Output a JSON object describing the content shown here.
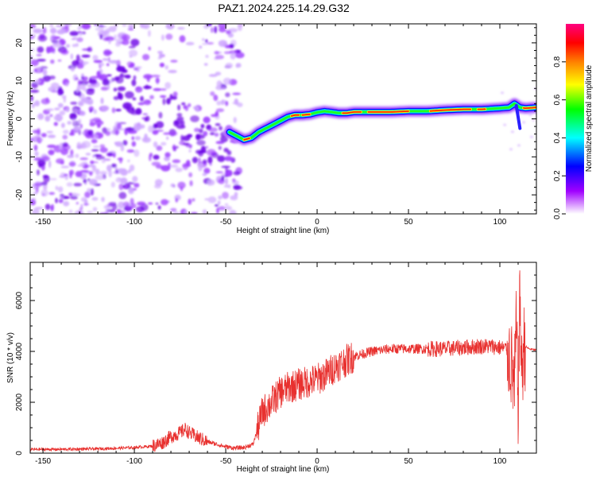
{
  "title": "PAZ1.2024.225.14.29.G32",
  "chart_data": [
    {
      "type": "heatmap",
      "title": "PAZ1.2024.225.14.29.G32",
      "xlabel": "Height of straight line (km)",
      "ylabel": "Frequency (Hz)",
      "xlim": [
        -157,
        120
      ],
      "ylim": [
        -25,
        25
      ],
      "xticks": [
        -150,
        -100,
        -50,
        0,
        50,
        100
      ],
      "yticks": [
        -20,
        -10,
        0,
        10,
        20
      ],
      "grid": false,
      "ridge": {
        "x": [
          -48,
          -44,
          -40,
          -36,
          -32,
          -28,
          -24,
          -20,
          -16,
          -12,
          -8,
          -4,
          0,
          4,
          8,
          12,
          16,
          20,
          30,
          40,
          50,
          60,
          70,
          80,
          90,
          100,
          105,
          108,
          111,
          114,
          120
        ],
        "y": [
          -3.5,
          -4.5,
          -5.5,
          -5,
          -3.5,
          -2.5,
          -1.5,
          -0.5,
          0.5,
          1,
          1,
          1.2,
          1.7,
          2,
          1.8,
          1.5,
          1.5,
          1.8,
          1.8,
          1.8,
          2,
          2,
          2.3,
          2.5,
          2.5,
          2.8,
          3,
          4,
          3,
          2.8,
          3
        ]
      },
      "colorbar": {
        "label": "Normalized spectral amplitude",
        "ticks": [
          "0.0",
          "0.2",
          "0.4",
          "0.6",
          "0.8"
        ],
        "range": [
          0,
          1
        ],
        "colormap": [
          "#ffffff",
          "#a000ff",
          "#0000ff",
          "#00ffff",
          "#00ff00",
          "#ffff00",
          "#ff8000",
          "#ff0000",
          "#ff0080"
        ]
      }
    },
    {
      "type": "line",
      "xlabel": "Height of straight line (km)",
      "ylabel": "SNR (10 * v/v)",
      "xlim": [
        -157,
        120
      ],
      "ylim": [
        0,
        7500
      ],
      "xticks": [
        -150,
        -100,
        -50,
        0,
        50,
        100
      ],
      "yticks": [
        0,
        2000,
        4000,
        6000
      ],
      "grid": false,
      "color": "#e8312f",
      "series": [
        {
          "x": [
            -157,
            -140,
            -120,
            -100,
            -90,
            -85,
            -80,
            -75,
            -72,
            -70,
            -65,
            -60,
            -55,
            -50,
            -45,
            -40,
            -35,
            -32,
            -30,
            -25,
            -20,
            -15,
            -10,
            -5,
            0,
            5,
            10,
            15,
            20,
            25,
            30,
            40,
            50,
            60,
            70,
            80,
            90,
            95,
            100,
            104,
            106,
            108,
            109,
            110,
            111,
            112,
            113,
            114,
            116,
            120
          ],
          "y": [
            150,
            150,
            170,
            220,
            280,
            400,
            650,
            800,
            950,
            800,
            600,
            450,
            350,
            250,
            200,
            220,
            350,
            1100,
            1600,
            2000,
            2400,
            2600,
            2700,
            2800,
            2900,
            3100,
            3400,
            3600,
            3800,
            3900,
            4000,
            4100,
            4100,
            4100,
            4100,
            4150,
            4200,
            4200,
            4150,
            4100,
            3600,
            2600,
            5000,
            2000,
            6200,
            3000,
            4200,
            4200,
            4100,
            4050
          ]
        }
      ]
    }
  ]
}
